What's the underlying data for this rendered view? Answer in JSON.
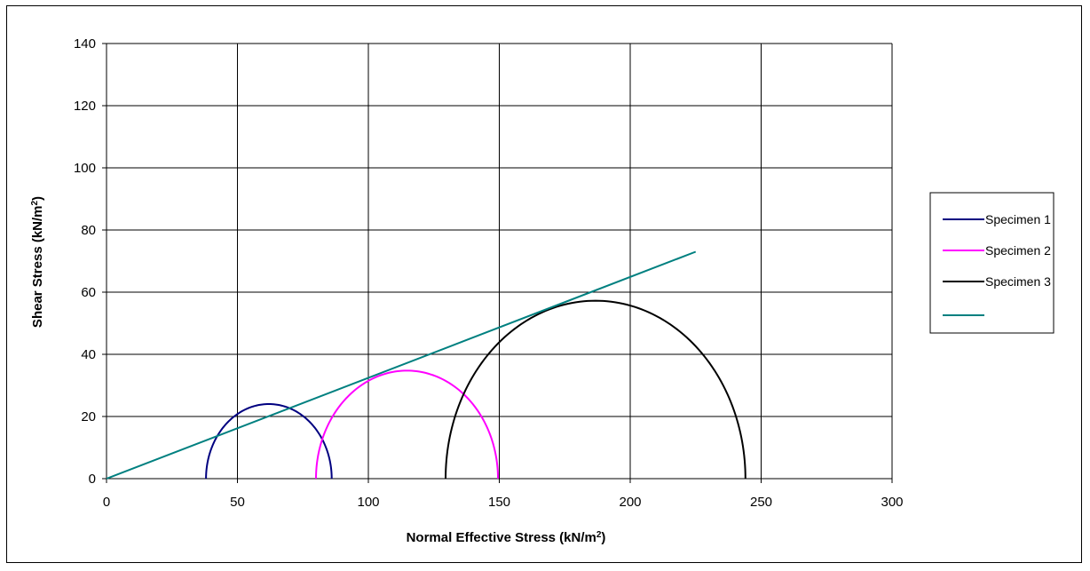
{
  "chart_data": {
    "type": "line",
    "title": "",
    "xlabel": "Normal Effective Stress (kN/m",
    "ylabel": "Shear Stress (kN/m",
    "unit_superscript": "2",
    "unit_close": ")",
    "xlim": [
      0,
      300
    ],
    "ylim": [
      0,
      140
    ],
    "x_ticks": [
      "0",
      "50",
      "100",
      "150",
      "200",
      "250",
      "300"
    ],
    "y_ticks": [
      "0",
      "20",
      "40",
      "60",
      "80",
      "100",
      "120",
      "140"
    ],
    "grid": true,
    "legend_position": "right",
    "series": [
      {
        "name": "Specimen 1",
        "kind": "mohr-circle",
        "sigma3": 38,
        "sigma1": 86,
        "color": "#000080"
      },
      {
        "name": "Specimen 2",
        "kind": "mohr-circle",
        "sigma3": 80,
        "sigma1": 149.5,
        "color": "#ff00ff"
      },
      {
        "name": "Specimen 3",
        "kind": "mohr-circle",
        "sigma3": 129.5,
        "sigma1": 244,
        "color": "#000000"
      },
      {
        "name": "",
        "kind": "line",
        "x": [
          0,
          225
        ],
        "y": [
          0,
          73
        ],
        "color": "#008080"
      }
    ]
  }
}
